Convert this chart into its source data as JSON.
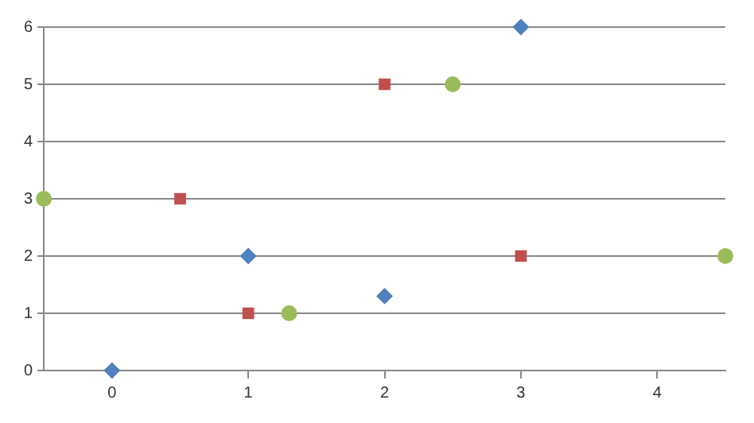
{
  "chart_data": {
    "type": "scatter",
    "xlim": [
      -0.5,
      4.5
    ],
    "xticks": [
      0,
      1,
      2,
      3,
      4
    ],
    "ylim": [
      0,
      6
    ],
    "yticks": [
      0,
      1,
      2,
      3,
      4,
      5,
      6
    ],
    "grid": "y",
    "legend": false,
    "series": [
      {
        "color": "#4f81bd",
        "marker": "diamond",
        "x": [
          0,
          1,
          2,
          3
        ],
        "values": [
          0,
          2,
          1.3,
          6
        ]
      },
      {
        "color": "#c0504d",
        "marker": "square",
        "x": [
          0.5,
          1,
          2,
          3
        ],
        "values": [
          3,
          1,
          5,
          2
        ]
      },
      {
        "color": "#9bbb59",
        "marker": "circle",
        "x": [
          -0.5,
          1.3,
          2.5,
          4.5
        ],
        "values": [
          3,
          1,
          5,
          2
        ]
      }
    ]
  }
}
